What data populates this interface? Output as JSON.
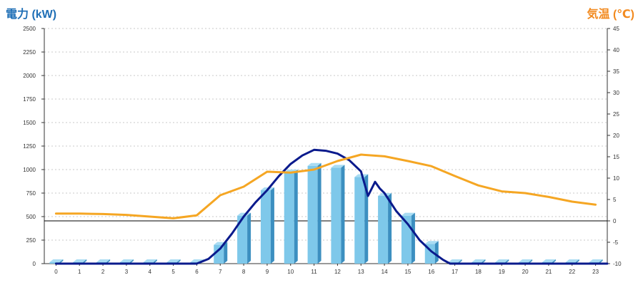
{
  "chart_data": {
    "type": "bar",
    "left_title": "電力 (kW)",
    "right_title": "気温 (℃)",
    "categories": [
      "0",
      "1",
      "2",
      "3",
      "4",
      "5",
      "6",
      "7",
      "8",
      "9",
      "10",
      "11",
      "12",
      "13",
      "14",
      "15",
      "16",
      "17",
      "18",
      "19",
      "20",
      "21",
      "22",
      "23"
    ],
    "left_axis": {
      "min": 0,
      "max": 2500,
      "ticks": [
        0,
        250,
        500,
        750,
        1000,
        1250,
        1500,
        1750,
        2000,
        2250,
        2500
      ]
    },
    "right_axis": {
      "min": -10,
      "max": 45,
      "ticks": [
        -10,
        -5,
        0,
        5,
        10,
        15,
        20,
        25,
        30,
        35,
        40,
        45
      ]
    },
    "grid": true,
    "reference_line": {
      "axis": "right",
      "value": 0
    },
    "series": [
      {
        "kind": "bar",
        "axis": "left",
        "color": "#7ec8ea",
        "values": [
          15,
          15,
          15,
          15,
          15,
          15,
          15,
          200,
          510,
          780,
          970,
          1040,
          1020,
          920,
          720,
          510,
          210,
          15,
          15,
          15,
          15,
          15,
          15,
          15
        ]
      },
      {
        "kind": "line",
        "axis": "left",
        "color": "#0a1a8c",
        "points": [
          [
            0,
            0
          ],
          [
            6,
            0
          ],
          [
            6.5,
            50
          ],
          [
            7,
            160
          ],
          [
            7.5,
            320
          ],
          [
            8,
            500
          ],
          [
            8.5,
            650
          ],
          [
            9,
            780
          ],
          [
            9.5,
            930
          ],
          [
            10,
            1060
          ],
          [
            10.5,
            1150
          ],
          [
            11,
            1210
          ],
          [
            11.5,
            1200
          ],
          [
            12,
            1170
          ],
          [
            12.5,
            1100
          ],
          [
            13,
            980
          ],
          [
            13.3,
            720
          ],
          [
            13.6,
            870
          ],
          [
            13.8,
            800
          ],
          [
            14,
            750
          ],
          [
            14.5,
            560
          ],
          [
            15,
            420
          ],
          [
            15.5,
            250
          ],
          [
            16,
            130
          ],
          [
            16.5,
            40
          ],
          [
            16.8,
            0
          ],
          [
            23.5,
            0
          ]
        ]
      },
      {
        "kind": "line",
        "axis": "right",
        "color": "#f5a623",
        "points": [
          [
            0,
            1.7
          ],
          [
            1,
            1.7
          ],
          [
            2,
            1.6
          ],
          [
            3,
            1.4
          ],
          [
            4,
            1.0
          ],
          [
            5,
            0.6
          ],
          [
            6,
            1.3
          ],
          [
            7,
            6.0
          ],
          [
            8,
            8.0
          ],
          [
            9,
            11.5
          ],
          [
            10,
            11.3
          ],
          [
            11,
            12.0
          ],
          [
            12,
            14.0
          ],
          [
            13,
            15.5
          ],
          [
            14,
            15.1
          ],
          [
            15,
            14.0
          ],
          [
            16,
            12.8
          ],
          [
            17,
            10.5
          ],
          [
            18,
            8.3
          ],
          [
            19,
            6.9
          ],
          [
            20,
            6.5
          ],
          [
            21,
            5.6
          ],
          [
            22,
            4.5
          ],
          [
            23,
            3.8
          ]
        ]
      }
    ]
  }
}
